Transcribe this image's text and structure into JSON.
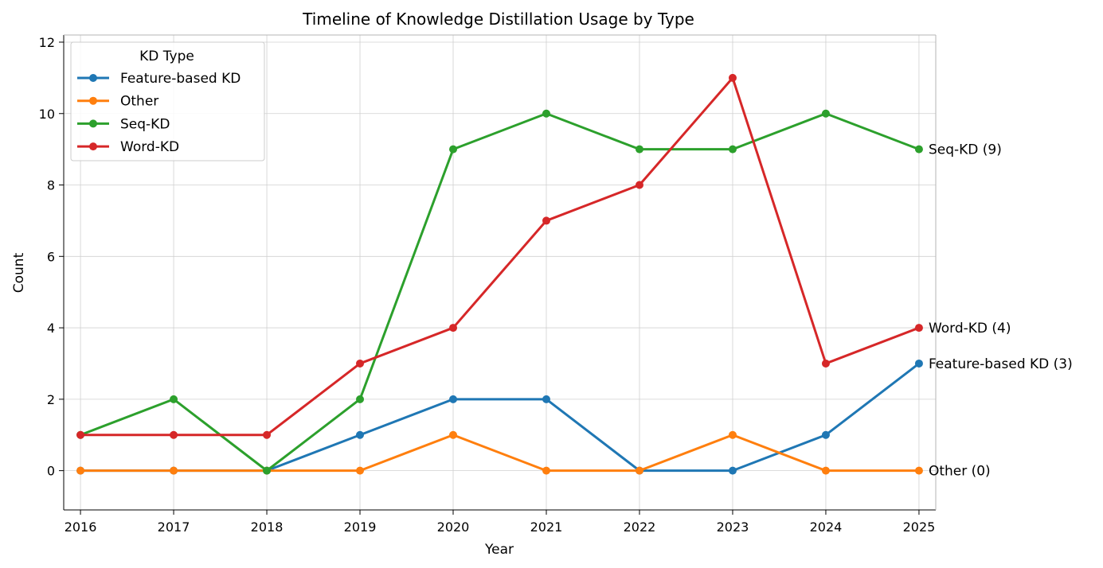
{
  "chart_data": {
    "type": "line",
    "title": "Timeline of Knowledge Distillation Usage by Type",
    "xlabel": "Year",
    "ylabel": "Count",
    "x": [
      2016,
      2017,
      2018,
      2019,
      2020,
      2021,
      2022,
      2023,
      2024,
      2025
    ],
    "xlim": [
      2015.82,
      2025.18
    ],
    "ylim": [
      -1.1,
      12.2
    ],
    "yticks": [
      0,
      2,
      4,
      6,
      8,
      10,
      12
    ],
    "grid": true,
    "legend": {
      "title": "KD Type",
      "placement": "top-left"
    },
    "series": [
      {
        "name": "Feature-based KD",
        "color": "#1f77b4",
        "values": [
          0,
          0,
          0,
          1,
          2,
          2,
          0,
          0,
          1,
          3
        ],
        "end_label": "Feature-based KD (3)"
      },
      {
        "name": "Other",
        "color": "#ff7f0e",
        "values": [
          0,
          0,
          0,
          0,
          1,
          0,
          0,
          1,
          0,
          0
        ],
        "end_label": "Other (0)"
      },
      {
        "name": "Seq-KD",
        "color": "#2ca02c",
        "values": [
          1,
          2,
          0,
          2,
          9,
          10,
          9,
          9,
          10,
          9
        ],
        "end_label": "Seq-KD (9)"
      },
      {
        "name": "Word-KD",
        "color": "#d62728",
        "values": [
          1,
          1,
          1,
          3,
          4,
          7,
          8,
          11,
          3,
          4
        ],
        "end_label": "Word-KD (4)"
      }
    ]
  }
}
